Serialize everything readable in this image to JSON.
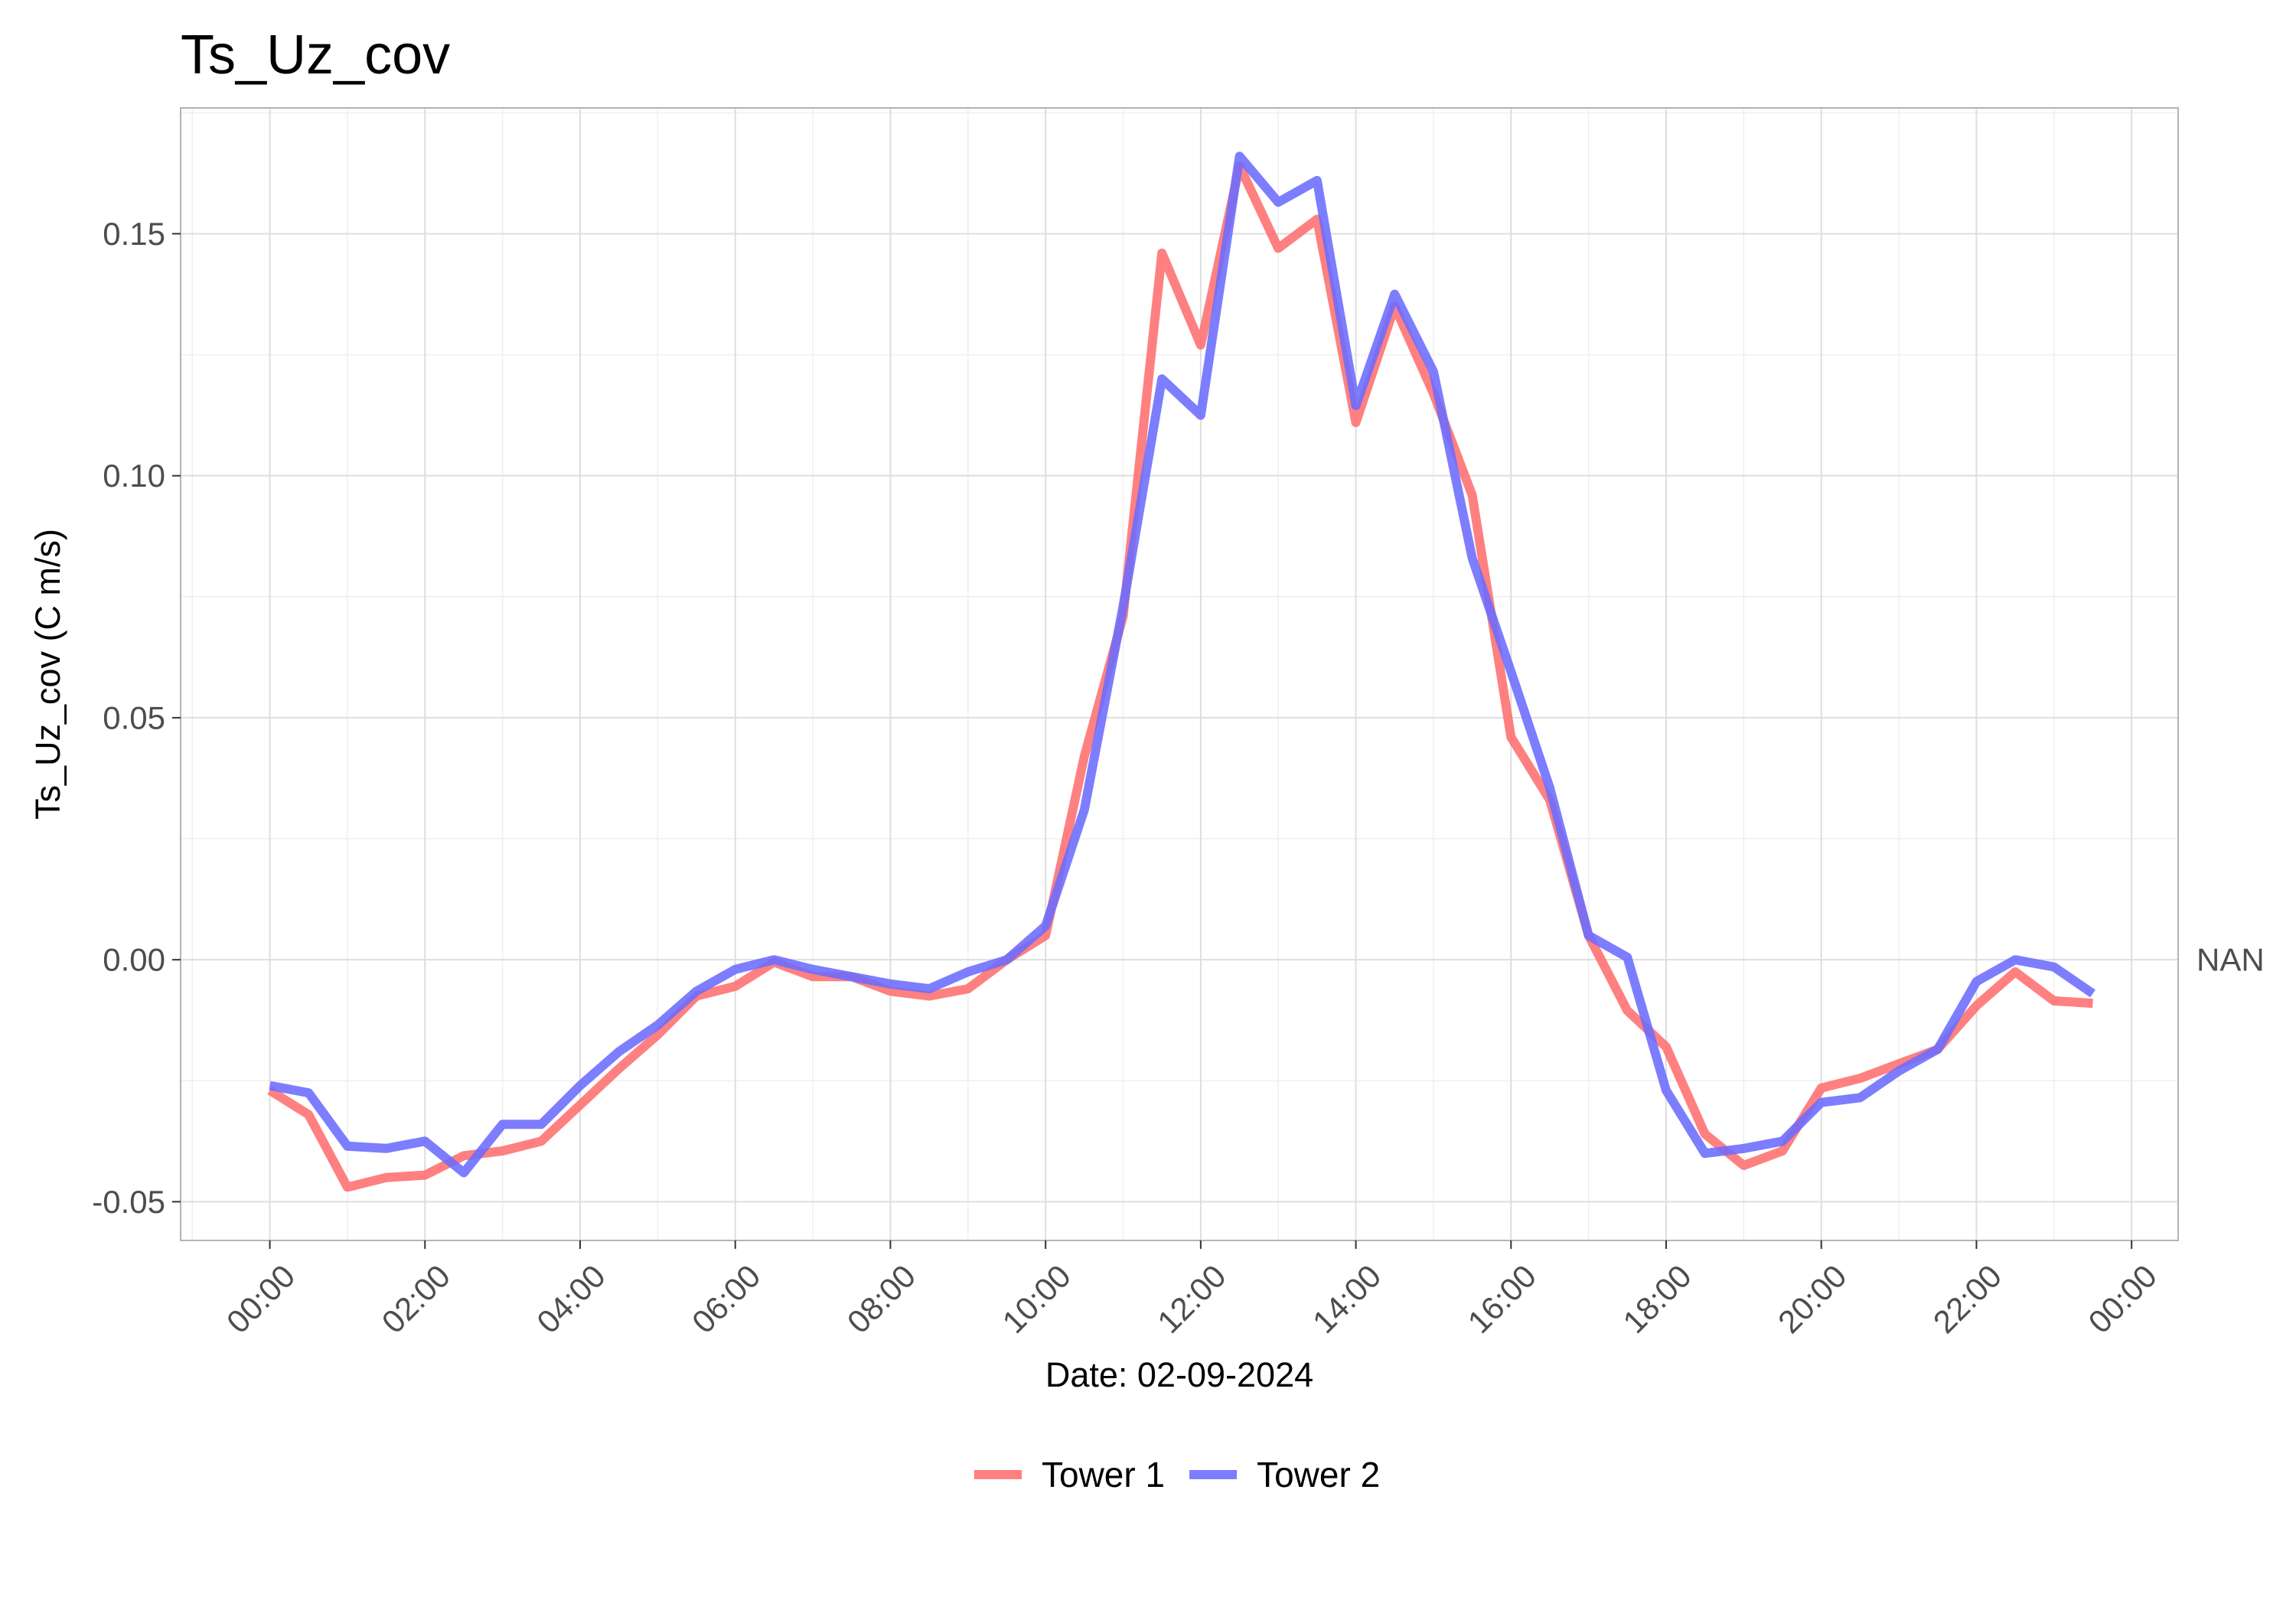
{
  "chart_data": {
    "type": "line",
    "title": "Ts_Uz_cov",
    "xlabel": "Date: 02-09-2024",
    "ylabel": "Ts_Uz_cov (C m/s)",
    "x_unit": "hours",
    "xlim": [
      -1.15,
      24.6
    ],
    "ylim": [
      -0.058,
      0.176
    ],
    "x_ticks": [
      0,
      2,
      4,
      6,
      8,
      10,
      12,
      14,
      16,
      18,
      20,
      22,
      24
    ],
    "x_tick_labels": [
      "00:00",
      "02:00",
      "04:00",
      "06:00",
      "08:00",
      "10:00",
      "12:00",
      "14:00",
      "16:00",
      "18:00",
      "20:00",
      "22:00",
      "00:00"
    ],
    "y_ticks": [
      -0.05,
      0.0,
      0.05,
      0.1,
      0.15
    ],
    "y_tick_labels": [
      "-0.05",
      "0.00",
      "0.05",
      "0.10",
      "0.15"
    ],
    "secondary_y_label": {
      "value": 0.0,
      "text": "NAN"
    },
    "grid": true,
    "legend_position": "bottom",
    "x": [
      0,
      0.5,
      1,
      1.5,
      2,
      2.5,
      3,
      3.5,
      4,
      4.5,
      5,
      5.5,
      6,
      6.5,
      7,
      7.5,
      8,
      8.5,
      9,
      9.5,
      10,
      10.5,
      11,
      11.5,
      12,
      12.5,
      13,
      13.5,
      14,
      14.5,
      15,
      15.5,
      16,
      16.5,
      17,
      17.5,
      18,
      18.5,
      19,
      19.5,
      20,
      20.5,
      21,
      21.5,
      22,
      22.5,
      23,
      23.5
    ],
    "series": [
      {
        "name": "Tower 1",
        "color": "#ff6e6e",
        "values": [
          -0.027,
          -0.032,
          -0.047,
          -0.045,
          -0.0445,
          -0.0405,
          -0.0395,
          -0.0375,
          -0.03,
          -0.0225,
          -0.0155,
          -0.0075,
          -0.0055,
          -0.0005,
          -0.0035,
          -0.0035,
          -0.0065,
          -0.0075,
          -0.006,
          0.0,
          0.005,
          0.042,
          0.071,
          0.146,
          0.127,
          0.164,
          0.147,
          0.153,
          0.111,
          0.135,
          0.117,
          0.096,
          0.046,
          0.033,
          0.005,
          -0.0105,
          -0.018,
          -0.036,
          -0.0425,
          -0.0395,
          -0.0265,
          -0.0245,
          -0.0215,
          -0.0185,
          -0.0095,
          -0.0025,
          -0.0085,
          -0.009
        ]
      },
      {
        "name": "Tower 2",
        "color": "#6b6bff",
        "values": [
          -0.026,
          -0.0275,
          -0.0385,
          -0.039,
          -0.0375,
          -0.044,
          -0.034,
          -0.034,
          -0.026,
          -0.019,
          -0.0135,
          -0.0065,
          -0.002,
          0.0,
          -0.002,
          -0.0035,
          -0.005,
          -0.006,
          -0.0025,
          0.0,
          0.007,
          0.031,
          0.073,
          0.12,
          0.1125,
          0.166,
          0.1565,
          0.161,
          0.1145,
          0.1375,
          0.1215,
          0.083,
          0.0595,
          0.0355,
          0.005,
          0.0005,
          -0.027,
          -0.04,
          -0.039,
          -0.0375,
          -0.0295,
          -0.0285,
          -0.023,
          -0.0185,
          -0.0045,
          0.0,
          -0.0015,
          -0.007
        ]
      }
    ]
  }
}
